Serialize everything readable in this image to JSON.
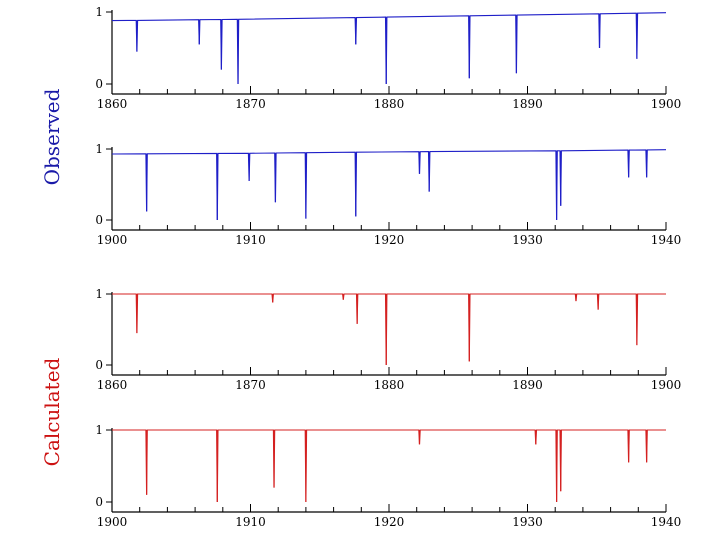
{
  "side_labels": {
    "observed": "Observed",
    "calculated": "Calculated"
  },
  "colors": {
    "observed": "#1f1fc8",
    "calculated": "#d42020",
    "axis": "#000000"
  },
  "chart_data": [
    {
      "type": "line",
      "group": "Observed",
      "xlim": [
        1860,
        1900
      ],
      "ylim": [
        0,
        1
      ],
      "xticks": [
        "1860",
        "1870",
        "1880",
        "1890",
        "1900"
      ],
      "yticks": [
        "0",
        "1"
      ],
      "baseline": [
        [
          1860,
          0.88
        ],
        [
          1870,
          0.9
        ],
        [
          1880,
          0.93
        ],
        [
          1890,
          0.96
        ],
        [
          1900,
          0.99
        ]
      ],
      "dips": [
        [
          1861.8,
          0.45
        ],
        [
          1866.3,
          0.55
        ],
        [
          1867.9,
          0.2
        ],
        [
          1869.1,
          0.0
        ],
        [
          1877.6,
          0.55
        ],
        [
          1879.8,
          0.0
        ],
        [
          1885.8,
          0.08
        ],
        [
          1889.2,
          0.15
        ],
        [
          1895.2,
          0.5
        ],
        [
          1897.9,
          0.35
        ]
      ]
    },
    {
      "type": "line",
      "group": "Observed",
      "xlim": [
        1900,
        1940
      ],
      "ylim": [
        0,
        1
      ],
      "xticks": [
        "1900",
        "1910",
        "1920",
        "1930",
        "1940"
      ],
      "yticks": [
        "0",
        "1"
      ],
      "baseline": [
        [
          1900,
          0.93
        ],
        [
          1910,
          0.94
        ],
        [
          1920,
          0.96
        ],
        [
          1930,
          0.97
        ],
        [
          1940,
          0.99
        ]
      ],
      "dips": [
        [
          1902.5,
          0.12
        ],
        [
          1907.6,
          0.0
        ],
        [
          1909.9,
          0.55
        ],
        [
          1911.8,
          0.25
        ],
        [
          1914.0,
          0.02
        ],
        [
          1917.6,
          0.05
        ],
        [
          1922.2,
          0.65
        ],
        [
          1922.9,
          0.4
        ],
        [
          1932.1,
          0.0
        ],
        [
          1932.4,
          0.2
        ],
        [
          1937.3,
          0.6
        ],
        [
          1938.6,
          0.6
        ]
      ]
    },
    {
      "type": "line",
      "group": "Calculated",
      "xlim": [
        1860,
        1900
      ],
      "ylim": [
        0,
        1
      ],
      "xticks": [
        "1860",
        "1870",
        "1880",
        "1890",
        "1900"
      ],
      "yticks": [
        "0",
        "1"
      ],
      "baseline": [
        [
          1860,
          1.0
        ],
        [
          1900,
          1.0
        ]
      ],
      "dips": [
        [
          1861.8,
          0.45
        ],
        [
          1871.6,
          0.88
        ],
        [
          1876.7,
          0.92
        ],
        [
          1877.7,
          0.58
        ],
        [
          1879.8,
          0.0
        ],
        [
          1885.8,
          0.05
        ],
        [
          1893.5,
          0.9
        ],
        [
          1895.1,
          0.78
        ],
        [
          1897.9,
          0.28
        ]
      ]
    },
    {
      "type": "line",
      "group": "Calculated",
      "xlim": [
        1900,
        1940
      ],
      "ylim": [
        0,
        1
      ],
      "xticks": [
        "1900",
        "1910",
        "1920",
        "1930",
        "1940"
      ],
      "yticks": [
        "0",
        "1"
      ],
      "baseline": [
        [
          1900,
          1.0
        ],
        [
          1940,
          1.0
        ]
      ],
      "dips": [
        [
          1902.5,
          0.1
        ],
        [
          1907.6,
          0.0
        ],
        [
          1911.7,
          0.2
        ],
        [
          1914.0,
          0.0
        ],
        [
          1922.2,
          0.8
        ],
        [
          1930.6,
          0.8
        ],
        [
          1932.1,
          0.0
        ],
        [
          1932.4,
          0.15
        ],
        [
          1937.3,
          0.55
        ],
        [
          1938.6,
          0.55
        ]
      ]
    }
  ]
}
